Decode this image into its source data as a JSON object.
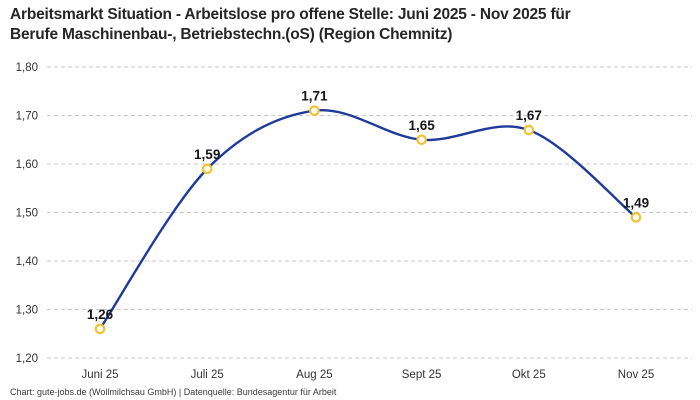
{
  "header": {
    "title_line1": "Arbeitsmarkt Situation - Arbeitslose pro offene Stelle: Juni 2025 - Nov 2025 für",
    "title_line2": "Berufe Maschinenbau-, Betriebstechn.(oS) (Region Chemnitz)"
  },
  "footer": {
    "credit": "Chart: gute-jobs.de (Wollmilchsau GmbH) | Datenquelle: Bundesagentur für Arbeit"
  },
  "chart_data": {
    "type": "line",
    "title": "Arbeitsmarkt Situation - Arbeitslose pro offene Stelle: Juni 2025 - Nov 2025 für Berufe Maschinenbau-, Betriebstechn.(oS) (Region Chemnitz)",
    "categories": [
      "Juni 25",
      "Juli 25",
      "Aug 25",
      "Sept 25",
      "Okt 25",
      "Nov 25"
    ],
    "values": [
      1.26,
      1.59,
      1.71,
      1.65,
      1.67,
      1.49
    ],
    "value_labels": [
      "1,26",
      "1,59",
      "1,71",
      "1,65",
      "1,67",
      "1,49"
    ],
    "ylim": [
      1.2,
      1.8
    ],
    "y_ticks": [
      {
        "value": 1.8,
        "label": "1,80"
      },
      {
        "value": 1.7,
        "label": "1,70"
      },
      {
        "value": 1.6,
        "label": "1,60"
      },
      {
        "value": 1.5,
        "label": "1,50"
      },
      {
        "value": 1.4,
        "label": "1,40"
      },
      {
        "value": 1.3,
        "label": "1,30"
      },
      {
        "value": 1.2,
        "label": "1,20"
      }
    ],
    "xlabel": "",
    "ylabel": "",
    "legend": "none",
    "grid": "horizontal-dashed",
    "line_style": "smooth",
    "marker": "open-circle",
    "colors": {
      "line": "#1e3a9a",
      "marker_stroke": "#f2c230",
      "marker_fill": "#ffffff",
      "grid": "#c9c9c9",
      "data_label": "#16161d",
      "axis_label": "#333333"
    }
  }
}
